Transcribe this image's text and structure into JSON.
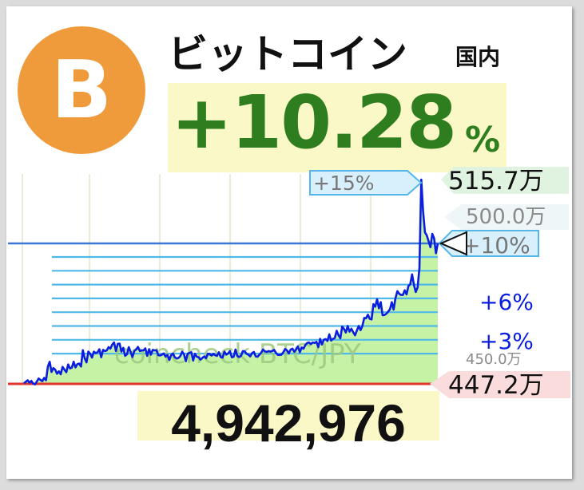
{
  "header": {
    "logo_glyph": "B",
    "title": "ビットコイン",
    "region": "国内",
    "change": "+10.28",
    "change_unit": "%",
    "price": "4,942,976"
  },
  "chart_data": {
    "type": "line",
    "watermark": "coincheck BTC/JPY",
    "y_unit": "万",
    "ylim": [
      445,
      520
    ],
    "low": 447.2,
    "high": 515.7,
    "current": 494.3,
    "markers": [
      {
        "label": "+15%",
        "value": 515.7
      },
      {
        "label": "+10%",
        "value": 494.3
      },
      {
        "label": "+6%",
        "value": 480.0
      },
      {
        "label": "+3%",
        "value": 465.0
      }
    ],
    "right_labels": [
      {
        "label": "515.7万",
        "value": 515.7,
        "style": "high"
      },
      {
        "label": "500.0万",
        "value": 500.0,
        "style": "level"
      },
      {
        "label": "450.0万",
        "value": 450.0,
        "style": "level"
      },
      {
        "label": "447.2万",
        "value": 447.2,
        "style": "low"
      }
    ],
    "colors": {
      "line": "#0a1ee0",
      "fill": "#c6f2a6",
      "high_line": "#3a78d8",
      "low_line": "#e0352a",
      "hlines": "#50b8e8",
      "marker_border": "#54b6e8",
      "marker_fill": "#d8f0fb",
      "change": "#2e7d1e"
    },
    "series": [
      {
        "values": [
          447.4,
          447.9,
          448.4,
          447.6,
          448.2,
          447.3,
          447.0,
          448.0,
          449.0,
          448.5,
          448.1,
          449.2,
          448.4,
          453.0,
          454.6,
          451.2,
          452.5,
          452.0,
          450.6,
          451.4,
          450.4,
          452.9,
          452.0,
          451.1,
          453.7,
          452.4,
          452.6,
          454.6,
          452.7,
          453.8,
          454.0,
          453.0,
          458.5,
          455.8,
          454.4,
          458.0,
          457.3,
          456.0,
          458.0,
          457.5,
          457.8,
          458.8,
          456.1,
          458.6,
          458.2,
          458.4,
          459.5,
          459.0,
          460.4,
          461.1,
          458.2,
          460.6,
          460.7,
          458.0,
          459.3,
          456.6,
          457.1,
          459.5,
          457.9,
          456.2,
          458.2,
          458.7,
          459.6,
          458.2,
          458.4,
          458.4,
          459.1,
          456.6,
          458.8,
          457.0,
          458.6,
          458.4,
          458.5,
          456.8,
          456.7,
          457.0,
          457.4,
          456.3,
          456.9,
          455.2,
          456.8,
          457.4,
          456.1,
          455.7,
          455.9,
          456.5,
          458.0,
          457.1,
          454.8,
          457.3,
          457.6,
          457.8,
          455.0,
          457.3,
          456.3,
          456.1,
          455.3,
          455.9,
          456.4,
          455.8,
          457.3,
          457.2,
          456.7,
          457.3,
          456.8,
          456.6,
          457.8,
          456.2,
          456.0,
          458.0,
          457.0,
          457.4,
          458.2,
          456.1,
          456.3,
          458.7,
          456.5,
          456.2,
          456.6,
          458.2,
          458.1,
          457.3,
          457.0,
          456.4,
          457.5,
          457.9,
          456.4,
          456.3,
          457.0,
          457.7,
          458.7,
          458.1,
          457.9,
          458.2,
          458.0,
          458.2,
          458.6,
          457.6,
          456.9,
          456.9,
          457.0,
          457.8,
          458.9,
          458.4,
          457.4,
          458.7,
          459.0,
          457.9,
          458.8,
          459.7,
          457.8,
          459.4,
          459.0,
          460.2,
          460.9,
          461.1,
          460.5,
          461.1,
          460.9,
          461.3,
          459.5,
          462.3,
          460.4,
          462.0,
          462.2,
          461.6,
          463.8,
          461.7,
          462.3,
          462.6,
          465.0,
          463.5,
          462.5,
          466.4,
          465.6,
          464.4,
          466.6,
          464.7,
          465.7,
          464.5,
          463.5,
          465.1,
          466.6,
          465.2,
          466.6,
          469.3,
          469.2,
          470.4,
          469.0,
          468.8,
          473.9,
          473.1,
          475.6,
          472.5,
          474.6,
          470.2,
          470.3,
          470.7,
          471.4,
          472.2,
          474.6,
          472.1,
          475.9,
          478.3,
          477.4,
          477.0,
          477.0,
          478.6,
          477.2,
          480.0,
          480.6,
          483.9,
          480.5,
          478.0,
          479.5,
          486.0,
          515.7,
          505.0,
          498.0,
          497.0,
          495.0,
          493.0,
          497.5,
          496.0,
          491.0,
          494.3
        ]
      }
    ]
  }
}
